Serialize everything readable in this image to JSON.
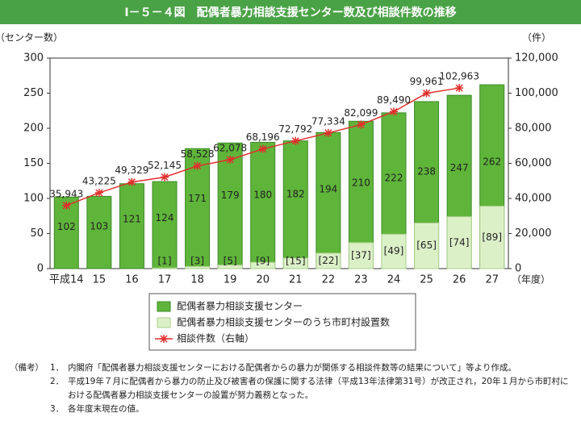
{
  "chart_data": {
    "type": "bar-line",
    "title": "Ⅰ－５－４図　配偶者暴力相談支援センター数及び相談件数の推移",
    "y_label": "（センター数）",
    "y2_label": "（件）",
    "x_unit": "（年度）",
    "categories": [
      "平成14",
      "15",
      "16",
      "17",
      "18",
      "19",
      "20",
      "21",
      "22",
      "23",
      "24",
      "25",
      "26",
      "27"
    ],
    "series": [
      {
        "name": "配偶者暴力相談支援センター",
        "kind": "bar",
        "color": "#5fb53a",
        "values": [
          102,
          103,
          121,
          124,
          171,
          179,
          180,
          182,
          194,
          210,
          222,
          238,
          247,
          262
        ]
      },
      {
        "name": "配偶者暴力相談支援センターのうち市町村設置数",
        "kind": "bar",
        "color": "#dcf0c8",
        "values": [
          null,
          null,
          null,
          1,
          3,
          5,
          9,
          15,
          22,
          37,
          49,
          65,
          74,
          89
        ],
        "value_labels": [
          null,
          null,
          null,
          "[1]",
          "[3]",
          "[5]",
          "[9]",
          "[15]",
          "[22]",
          "[37]",
          "[49]",
          "[65]",
          "[74]",
          "[89]"
        ]
      },
      {
        "name": "相談件数（右軸）",
        "kind": "line",
        "axis": "y2",
        "color": "#e0302c",
        "values": [
          35943,
          43225,
          49329,
          52145,
          58528,
          62078,
          68196,
          72792,
          77334,
          82099,
          89490,
          99961,
          102963,
          null
        ],
        "value_labels": [
          "35,943",
          "43,225",
          "49,329",
          "52,145",
          "58,528",
          "62,078",
          "68,196",
          "72,792",
          "77,334",
          "82,099",
          "89,490",
          "99,961",
          "102,963",
          null
        ]
      }
    ],
    "ylim": [
      0,
      300
    ],
    "yticks": [
      0,
      50,
      100,
      150,
      200,
      250,
      300
    ],
    "y2lim": [
      0,
      120000
    ],
    "y2ticks": [
      0,
      {
        "value": 20000,
        "label": "20,000"
      },
      {
        "value": 40000,
        "label": "40,000"
      },
      {
        "value": 60000,
        "label": "60,000"
      },
      {
        "value": 80000,
        "label": "80,000"
      },
      {
        "value": 100000,
        "label": "100,000"
      },
      {
        "value": 120000,
        "label": "120,000"
      }
    ]
  },
  "notes": {
    "label": "（備考）",
    "items": [
      {
        "number": "1．",
        "text": "内閣府「配偶者暴力相談支援センターにおける配偶者からの暴力が関係する相談件数等の結果について」等より作成。"
      },
      {
        "number": "2．",
        "text": "平成19年７月に配偶者から暴力の防止及び被害者の保護に関する法律（平成13年法律第31号）が改正され，20年１月から市町村における配偶者暴力相談支援センターの設置が努力義務となった。"
      },
      {
        "number": "3．",
        "text": "各年度末現在の値。"
      }
    ]
  }
}
